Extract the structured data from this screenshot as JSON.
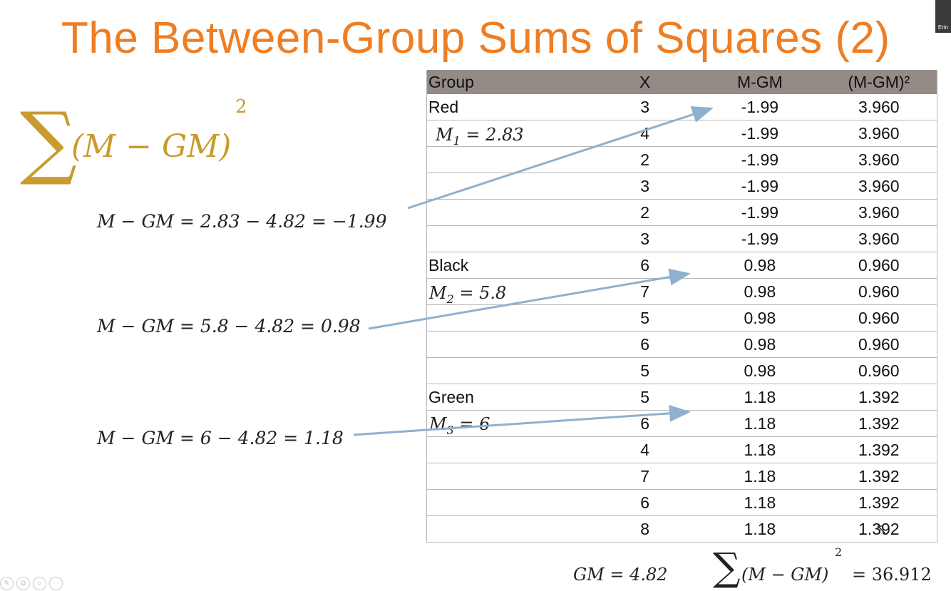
{
  "title": "The Between-Group Sums of Squares (2)",
  "presenter_label": "Erin",
  "formula": {
    "sigma": "∑",
    "expression": "(M − GM)",
    "exponent": "2"
  },
  "equations": [
    "M − GM = 2.83 − 4.82 = −1.99",
    "M − GM = 5.8 − 4.82 = 0.98",
    "M − GM = 6 − 4.82 = 1.18"
  ],
  "group_means": [
    {
      "var": "M",
      "sub": "1",
      "value": " = 2.83"
    },
    {
      "var": "M",
      "sub": "2",
      "value": " = 5.8"
    },
    {
      "var": "M",
      "sub": "3",
      "value": " = 6"
    }
  ],
  "table": {
    "headers": [
      "Group",
      "X",
      "M-GM",
      "(M-GM)²"
    ],
    "rows": [
      [
        "Red",
        "3",
        "-1.99",
        "3.960"
      ],
      [
        "",
        "4",
        "-1.99",
        "3.960"
      ],
      [
        "",
        "2",
        "-1.99",
        "3.960"
      ],
      [
        "",
        "3",
        "-1.99",
        "3.960"
      ],
      [
        "",
        "2",
        "-1.99",
        "3.960"
      ],
      [
        "",
        "3",
        "-1.99",
        "3.960"
      ],
      [
        "Black",
        "6",
        "0.98",
        "0.960"
      ],
      [
        "",
        "7",
        "0.98",
        "0.960"
      ],
      [
        "",
        "5",
        "0.98",
        "0.960"
      ],
      [
        "",
        "6",
        "0.98",
        "0.960"
      ],
      [
        "",
        "5",
        "0.98",
        "0.960"
      ],
      [
        "Green",
        "5",
        "1.18",
        "1.392"
      ],
      [
        "",
        "6",
        "1.18",
        "1.392"
      ],
      [
        "",
        "4",
        "1.18",
        "1.392"
      ],
      [
        "",
        "7",
        "1.18",
        "1.392"
      ],
      [
        "",
        "6",
        "1.18",
        "1.392"
      ],
      [
        "",
        "8",
        "1.18",
        "1.392"
      ]
    ]
  },
  "grand_mean": "GM = 4.82",
  "total": {
    "sigma": "∑",
    "expression": "(M − GM)",
    "exponent": "2",
    "result": "= 36.912"
  },
  "colors": {
    "title": "#ef7d22",
    "formula": "#c99a2e",
    "header_bg": "#948b86",
    "arrow": "#8fb0cf"
  },
  "toolbar_icons": [
    "pen-icon",
    "copy-icon",
    "zoom-icon",
    "more-icon"
  ]
}
